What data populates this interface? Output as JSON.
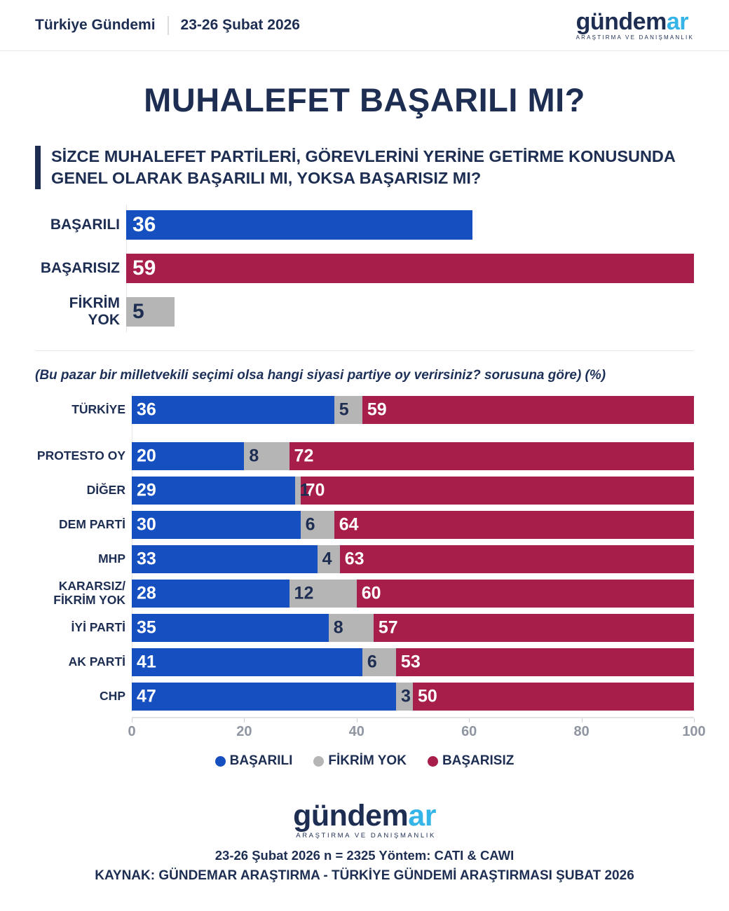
{
  "header": {
    "brand": "Türkiye Gündemi",
    "date": "23-26 Şubat 2026"
  },
  "logo": {
    "word1": "gündem",
    "word2": "ar",
    "tagline": "ARAŞTIRMA VE DANIŞMANLIK"
  },
  "title": "MUHALEFET BAŞARILI MI?",
  "question": {
    "line1": "SİZCE MUHALEFET PARTİLERİ, GÖREVLERİNİ YERİNE GETİRME KONUSUNDA",
    "line2": "GENEL OLARAK BAŞARILI MI, YOKSA BAŞARISIZ MI?"
  },
  "subtitle": "(Bu pazar bir milletvekili seçimi olsa hangi siyasi partiye oy verirsiniz? sorusuna göre) (%)",
  "colors": {
    "navy": "#1d2e52",
    "blue": "#1650c0",
    "crimson": "#a81e4a",
    "gray": "#b5b5b5",
    "cyan": "#35b4e8"
  },
  "chart_data": [
    {
      "type": "bar",
      "orientation": "horizontal",
      "categories": [
        "BAŞARILI",
        "BAŞARISIZ",
        "FİKRİM YOK"
      ],
      "values": [
        36,
        59,
        5
      ],
      "bar_colors": [
        "#1650c0",
        "#a81e4a",
        "#b5b5b5"
      ],
      "value_label_colors": [
        "#ffffff",
        "#ffffff",
        "#1d2e52"
      ],
      "xlim": [
        0,
        59
      ],
      "grid": false
    },
    {
      "type": "bar",
      "stacked": true,
      "orientation": "horizontal",
      "categories": [
        "TÜRKİYE",
        "PROTESTO OY",
        "DİĞER",
        "DEM PARTİ",
        "MHP",
        "KARARSIZ/ FİKRİM YOK",
        "İYİ PARTİ",
        "AK PARTİ",
        "CHP"
      ],
      "series": [
        {
          "name": "BAŞARILI",
          "color": "#1650c0",
          "label_color": "#ffffff",
          "values": [
            36,
            20,
            29,
            30,
            33,
            28,
            35,
            41,
            47
          ]
        },
        {
          "name": "FİKRİM YOK",
          "color": "#b5b5b5",
          "label_color": "#1d2e52",
          "values": [
            5,
            8,
            1,
            6,
            4,
            12,
            8,
            6,
            3
          ]
        },
        {
          "name": "BAŞARISIZ",
          "color": "#a81e4a",
          "label_color": "#ffffff",
          "values": [
            59,
            72,
            70,
            64,
            63,
            60,
            57,
            53,
            50
          ]
        }
      ],
      "xticks": [
        0,
        20,
        40,
        60,
        80,
        100
      ],
      "xlim": [
        0,
        100
      ],
      "legend_position": "bottom"
    }
  ],
  "legend": {
    "items": [
      {
        "label": "BAŞARILI",
        "color": "#1650c0"
      },
      {
        "label": "FİKRİM YOK",
        "color": "#b5b5b5"
      },
      {
        "label": "BAŞARISIZ",
        "color": "#a81e4a"
      }
    ]
  },
  "footer": {
    "methodology": "23-26 Şubat 2026 n = 2325 Yöntem: CATI & CAWI",
    "source": "KAYNAK: GÜNDEMAR ARAŞTIRMA - TÜRKİYE GÜNDEMİ ARAŞTIRMASI ŞUBAT 2026"
  }
}
